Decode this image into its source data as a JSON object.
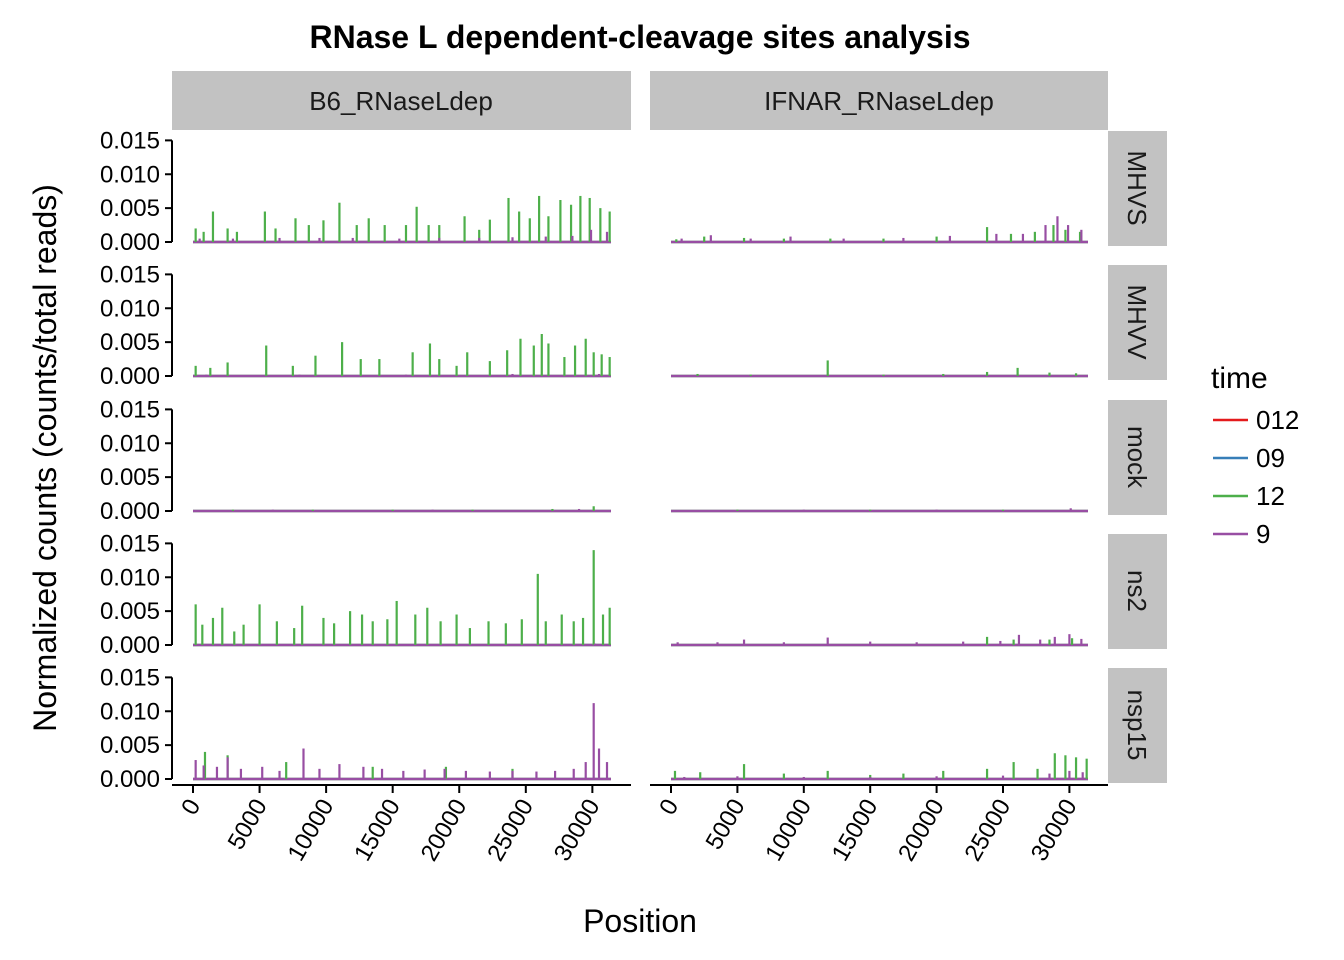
{
  "chart_data": {
    "type": "line",
    "title": "RNase L dependent-cleavage sites analysis",
    "xlabel": "Position",
    "ylabel": "Normalized counts (counts/total reads)",
    "xlim": [
      0,
      31400
    ],
    "ylim": [
      0,
      0.0155
    ],
    "x_ticks": [
      0,
      5000,
      10000,
      15000,
      20000,
      25000,
      30000
    ],
    "x_tick_labels": [
      "0",
      "5000",
      "10000",
      "15000",
      "20000",
      "25000",
      "30000"
    ],
    "y_ticks": [
      0,
      0.005,
      0.01,
      0.015
    ],
    "y_tick_labels": [
      "0.000",
      "0.005",
      "0.010",
      "0.015"
    ],
    "grid": false,
    "legend_placement": "right",
    "legend": {
      "title": "time",
      "entries": [
        {
          "label": "012",
          "color": "#e41a1c"
        },
        {
          "label": "09",
          "color": "#377eb8"
        },
        {
          "label": "12",
          "color": "#4daf4a"
        },
        {
          "label": "9",
          "color": "#984ea3"
        }
      ]
    },
    "facet_columns": [
      "B6_RNaseLdep",
      "IFNAR_RNaseLdep"
    ],
    "facet_rows": [
      "MHVS",
      "MHVV",
      "mock",
      "ns2",
      "nsp15"
    ],
    "panels": [
      {
        "column": "B6_RNaseLdep",
        "row": "MHVS",
        "series": [
          {
            "name": "12",
            "color": "#4daf4a",
            "x": [
              200,
              800,
              1500,
              2600,
              3300,
              5400,
              6200,
              7700,
              8700,
              9800,
              11000,
              12300,
              13200,
              14400,
              16000,
              16800,
              17700,
              18500,
              20400,
              21500,
              22300,
              23700,
              24500,
              25300,
              26000,
              26700,
              27600,
              28400,
              29100,
              29800,
              30600,
              31300
            ],
            "y": [
              0.002,
              0.0015,
              0.0045,
              0.002,
              0.0015,
              0.0045,
              0.002,
              0.0035,
              0.0025,
              0.0032,
              0.0058,
              0.0025,
              0.0035,
              0.0025,
              0.0025,
              0.0052,
              0.0025,
              0.0025,
              0.0038,
              0.0018,
              0.0033,
              0.0065,
              0.0045,
              0.0035,
              0.0068,
              0.0038,
              0.0062,
              0.0055,
              0.0068,
              0.0065,
              0.005,
              0.0045
            ]
          },
          {
            "name": "9",
            "color": "#984ea3",
            "x": [
              500,
              3000,
              6500,
              9500,
              12000,
              15500,
              18500,
              21500,
              24000,
              26500,
              28500,
              29900,
              31100
            ],
            "y": [
              0.0005,
              0.0005,
              0.0006,
              0.0006,
              0.0006,
              0.0005,
              0.0006,
              0.0006,
              0.0007,
              0.0008,
              0.0009,
              0.0018,
              0.0015
            ]
          }
        ]
      },
      {
        "column": "IFNAR_RNaseLdep",
        "row": "MHVS",
        "series": [
          {
            "name": "12",
            "color": "#4daf4a",
            "x": [
              400,
              2500,
              5500,
              8500,
              12000,
              16000,
              20000,
              23800,
              25600,
              27400,
              28800,
              29700,
              30800
            ],
            "y": [
              0.0004,
              0.0008,
              0.0006,
              0.0005,
              0.0005,
              0.0005,
              0.0008,
              0.0022,
              0.0012,
              0.0015,
              0.0025,
              0.0018,
              0.0015
            ]
          },
          {
            "name": "9",
            "color": "#984ea3",
            "x": [
              800,
              3000,
              6000,
              9000,
              13000,
              17500,
              21000,
              24500,
              26500,
              28200,
              29100,
              29900,
              30900
            ],
            "y": [
              0.0005,
              0.001,
              0.0005,
              0.0008,
              0.0005,
              0.0006,
              0.0009,
              0.0012,
              0.0012,
              0.0025,
              0.0038,
              0.0025,
              0.0018
            ]
          }
        ]
      },
      {
        "column": "B6_RNaseLdep",
        "row": "MHVV",
        "series": [
          {
            "name": "12",
            "color": "#4daf4a",
            "x": [
              200,
              1300,
              2600,
              5500,
              7500,
              9200,
              11200,
              12600,
              14000,
              16500,
              17800,
              18500,
              19800,
              20600,
              22300,
              23600,
              24600,
              25600,
              26200,
              26700,
              27900,
              28700,
              29500,
              30100,
              30700,
              31300
            ],
            "y": [
              0.0015,
              0.0012,
              0.002,
              0.0045,
              0.0015,
              0.003,
              0.005,
              0.0025,
              0.0025,
              0.0035,
              0.0048,
              0.0025,
              0.0015,
              0.0035,
              0.0022,
              0.0038,
              0.0055,
              0.0045,
              0.0062,
              0.0048,
              0.0028,
              0.0045,
              0.0055,
              0.0035,
              0.0032,
              0.0028
            ]
          },
          {
            "name": "9",
            "color": "#984ea3",
            "x": [
              1000,
              8000,
              16000,
              24000,
              30500
            ],
            "y": [
              0.0002,
              0.0002,
              0.0002,
              0.0003,
              0.0003
            ]
          }
        ]
      },
      {
        "column": "IFNAR_RNaseLdep",
        "row": "MHVV",
        "series": [
          {
            "name": "12",
            "color": "#4daf4a",
            "x": [
              2000,
              6000,
              11800,
              16000,
              20500,
              23800,
              26100,
              28500,
              30500
            ],
            "y": [
              0.0003,
              0.0002,
              0.0023,
              0.0002,
              0.0003,
              0.0006,
              0.0012,
              0.0005,
              0.0004
            ]
          },
          {
            "name": "9",
            "color": "#984ea3",
            "x": [
              3000,
              12000,
              22000,
              30000
            ],
            "y": [
              0.0001,
              0.0001,
              0.0001,
              0.0001
            ]
          }
        ]
      },
      {
        "column": "B6_RNaseLdep",
        "row": "mock",
        "series": [
          {
            "name": "12",
            "color": "#4daf4a",
            "x": [
              3000,
              9000,
              15000,
              21000,
              27000,
              30100
            ],
            "y": [
              0.0002,
              0.0002,
              0.0002,
              0.0002,
              0.0003,
              0.0007
            ]
          },
          {
            "name": "9",
            "color": "#984ea3",
            "x": [
              6000,
              18000,
              29000
            ],
            "y": [
              0.0002,
              0.0002,
              0.0003
            ]
          }
        ]
      },
      {
        "column": "IFNAR_RNaseLdep",
        "row": "mock",
        "series": [
          {
            "name": "12",
            "color": "#4daf4a",
            "x": [
              5000,
              15000,
              25000
            ],
            "y": [
              0.0002,
              0.0002,
              0.0002
            ]
          },
          {
            "name": "9",
            "color": "#984ea3",
            "x": [
              10000,
              20000,
              30100
            ],
            "y": [
              0.0002,
              0.0002,
              0.0004
            ]
          }
        ]
      },
      {
        "column": "B6_RNaseLdep",
        "row": "ns2",
        "series": [
          {
            "name": "12",
            "color": "#4daf4a",
            "x": [
              200,
              700,
              1500,
              2200,
              3100,
              3800,
              5000,
              6300,
              7600,
              8200,
              9800,
              10600,
              11800,
              12700,
              13500,
              14600,
              15300,
              16700,
              17600,
              18600,
              19800,
              20800,
              22200,
              23500,
              24700,
              25900,
              26500,
              27700,
              28600,
              29300,
              30100,
              30800,
              31300
            ],
            "y": [
              0.006,
              0.003,
              0.004,
              0.0055,
              0.002,
              0.003,
              0.006,
              0.0035,
              0.0025,
              0.0058,
              0.004,
              0.0032,
              0.005,
              0.0045,
              0.0035,
              0.0038,
              0.0065,
              0.0045,
              0.0055,
              0.0035,
              0.0045,
              0.0025,
              0.0035,
              0.0032,
              0.0038,
              0.0105,
              0.0035,
              0.0045,
              0.0035,
              0.004,
              0.014,
              0.0045,
              0.0055
            ]
          },
          {
            "name": "9",
            "color": "#984ea3",
            "x": [
              1000,
              9000,
              17000,
              25000,
              30200
            ],
            "y": [
              0.0001,
              0.0001,
              0.0001,
              0.0001,
              0.0002
            ]
          }
        ]
      },
      {
        "column": "IFNAR_RNaseLdep",
        "row": "ns2",
        "series": [
          {
            "name": "12",
            "color": "#4daf4a",
            "x": [
              23800,
              25800,
              28500,
              30200
            ],
            "y": [
              0.0012,
              0.0008,
              0.0008,
              0.001
            ]
          },
          {
            "name": "9",
            "color": "#984ea3",
            "x": [
              500,
              3500,
              5500,
              8500,
              11800,
              15000,
              18500,
              22000,
              24800,
              26200,
              27800,
              28900,
              30000,
              30900
            ],
            "y": [
              0.0004,
              0.0004,
              0.0008,
              0.0004,
              0.0011,
              0.0005,
              0.0004,
              0.0005,
              0.0006,
              0.0015,
              0.0008,
              0.0012,
              0.0016,
              0.0009
            ]
          }
        ]
      },
      {
        "column": "B6_RNaseLdep",
        "row": "nsp15",
        "series": [
          {
            "name": "12",
            "color": "#4daf4a",
            "x": [
              900,
              2600,
              7000,
              13500,
              19000,
              24000
            ],
            "y": [
              0.004,
              0.0035,
              0.0025,
              0.0018,
              0.0018,
              0.0015
            ]
          },
          {
            "name": "9",
            "color": "#984ea3",
            "x": [
              200,
              800,
              1800,
              2600,
              3600,
              5200,
              6500,
              8300,
              9500,
              11000,
              12800,
              14200,
              15800,
              17400,
              18900,
              20500,
              22300,
              24000,
              25800,
              27200,
              28600,
              29500,
              30100,
              30500,
              31100
            ],
            "y": [
              0.0028,
              0.002,
              0.0018,
              0.0032,
              0.0015,
              0.0018,
              0.0012,
              0.0045,
              0.0015,
              0.0022,
              0.0018,
              0.0015,
              0.0012,
              0.0014,
              0.0015,
              0.0012,
              0.0011,
              0.0012,
              0.0011,
              0.0012,
              0.0015,
              0.0025,
              0.0112,
              0.0045,
              0.0025
            ]
          }
        ]
      },
      {
        "column": "IFNAR_RNaseLdep",
        "row": "nsp15",
        "series": [
          {
            "name": "12",
            "color": "#4daf4a",
            "x": [
              300,
              2200,
              5500,
              8500,
              11800,
              15000,
              17500,
              20500,
              23800,
              25800,
              27600,
              28900,
              29700,
              30500,
              31300
            ],
            "y": [
              0.0012,
              0.001,
              0.0022,
              0.0008,
              0.0012,
              0.0006,
              0.0008,
              0.0012,
              0.0015,
              0.0025,
              0.0015,
              0.0038,
              0.0035,
              0.0032,
              0.003
            ]
          },
          {
            "name": "9",
            "color": "#984ea3",
            "x": [
              1000,
              5000,
              10000,
              15000,
              20000,
              25000,
              28500,
              30000,
              31000
            ],
            "y": [
              0.0003,
              0.0004,
              0.0003,
              0.0003,
              0.0004,
              0.0005,
              0.0008,
              0.0012,
              0.001
            ]
          }
        ]
      }
    ]
  }
}
